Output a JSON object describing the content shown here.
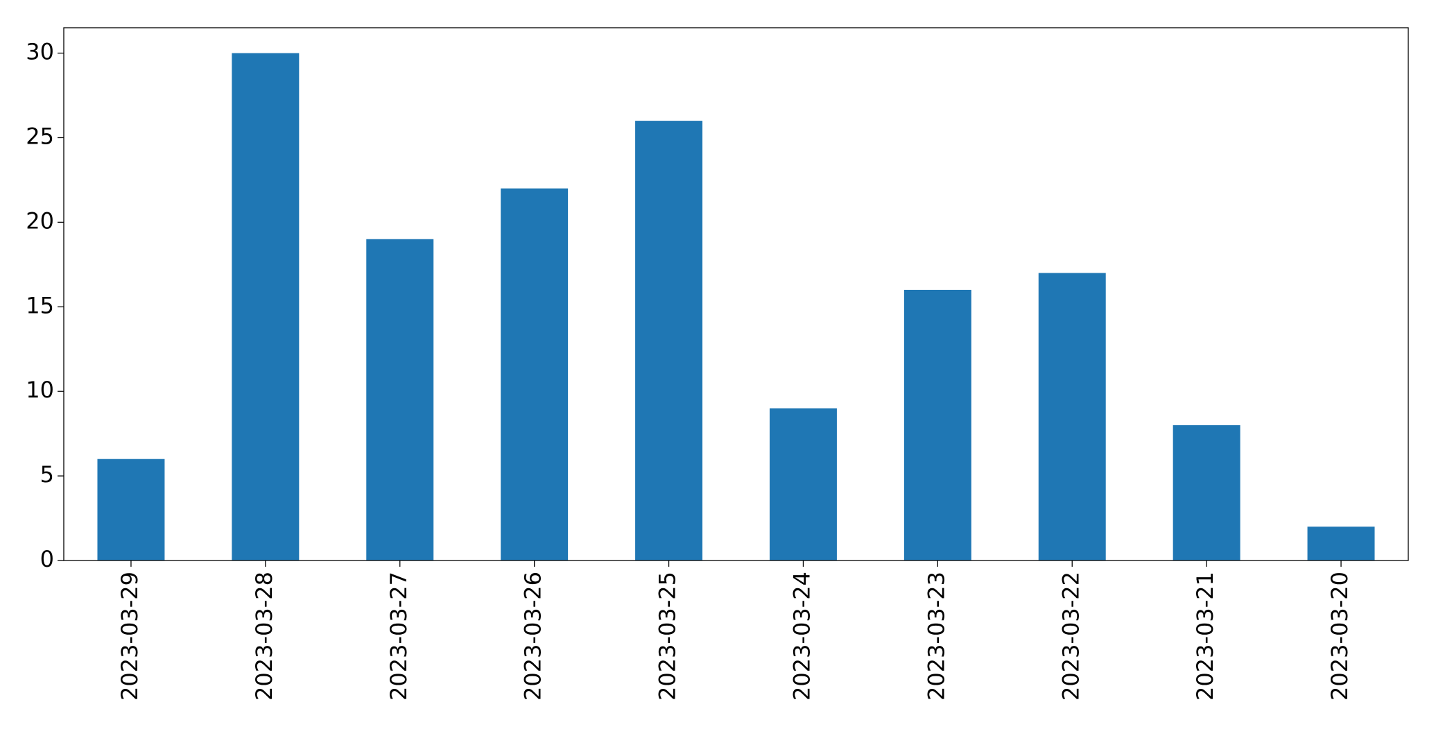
{
  "chart_data": {
    "type": "bar",
    "categories": [
      "2023-03-29",
      "2023-03-28",
      "2023-03-27",
      "2023-03-26",
      "2023-03-25",
      "2023-03-24",
      "2023-03-23",
      "2023-03-22",
      "2023-03-21",
      "2023-03-20"
    ],
    "values": [
      6,
      30,
      19,
      22,
      26,
      9,
      16,
      17,
      8,
      2
    ],
    "color": "#1f77b4",
    "ylim": [
      0,
      31.5
    ],
    "yticks": [
      0,
      5,
      10,
      15,
      20,
      25,
      30
    ],
    "grid": false
  }
}
